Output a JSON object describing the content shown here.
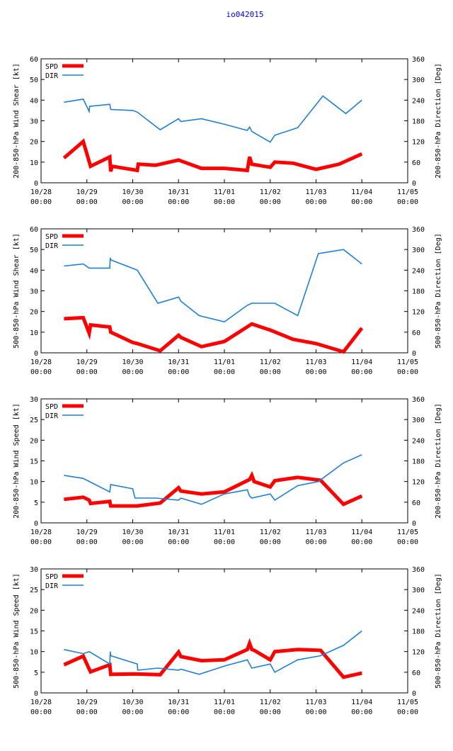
{
  "page_title": "io042015",
  "colors": {
    "spd": "#ff0000",
    "dir": "#1e7fd8",
    "title": "#0000ff",
    "axis": "#000000"
  },
  "x_axis": {
    "ticks": [
      {
        "date": "10/28",
        "time": "00:00"
      },
      {
        "date": "10/29",
        "time": "00:00"
      },
      {
        "date": "10/30",
        "time": "00:00"
      },
      {
        "date": "10/31",
        "time": "00:00"
      },
      {
        "date": "11/01",
        "time": "00:00"
      },
      {
        "date": "11/02",
        "time": "00:00"
      },
      {
        "date": "11/03",
        "time": "00:00"
      },
      {
        "date": "11/04",
        "time": "00:00"
      },
      {
        "date": "11/05",
        "time": "00:00"
      }
    ],
    "range_days": [
      0,
      8
    ]
  },
  "chart_data": [
    {
      "type": "line",
      "ylabel_left": "200-850-hPa Wind Shear [kt]",
      "ylabel_right": "200-850-hPa Direction [Deg]",
      "ylim_left": [
        0,
        60
      ],
      "yticks_left": [
        "0",
        "10",
        "20",
        "30",
        "40",
        "50",
        "60"
      ],
      "ylim_right": [
        0,
        360
      ],
      "yticks_right": [
        "0",
        "60",
        "120",
        "180",
        "240",
        "300",
        "360"
      ],
      "legend": [
        "SPD",
        "DIR"
      ],
      "series": [
        {
          "name": "SPD",
          "axis": "left",
          "x": [
            0.5,
            0.92,
            1.08,
            1.5,
            1.52,
            1.55,
            2.1,
            2.12,
            2.15,
            2.5,
            3.0,
            3.5,
            4.0,
            4.5,
            4.55,
            4.6,
            5.0,
            5.1,
            5.5,
            6.0,
            6.5,
            7.0
          ],
          "values": [
            12,
            20,
            8,
            12.5,
            5.5,
            8,
            6,
            9,
            9,
            8.5,
            11,
            7,
            7,
            6,
            12.5,
            9,
            7.5,
            10,
            9.5,
            6.5,
            9,
            14
          ]
        },
        {
          "name": "DIR",
          "axis": "left_scale_right",
          "x": [
            0.5,
            0.92,
            1.05,
            1.06,
            1.5,
            1.52,
            2.0,
            2.1,
            2.6,
            3.0,
            3.05,
            3.5,
            4.0,
            4.5,
            4.55,
            4.6,
            5.0,
            5.1,
            5.6,
            6.15,
            6.65,
            7.0
          ],
          "values": [
            234,
            243,
            207,
            222,
            228,
            213,
            210,
            205,
            154,
            186,
            178,
            186,
            170,
            152,
            162,
            149,
            118,
            138,
            160,
            252,
            201,
            240
          ]
        }
      ]
    },
    {
      "type": "line",
      "ylabel_left": "500-850-hPa Wind Shear [kt]",
      "ylabel_right": "500-850-hPa Direction [Deg]",
      "ylim_left": [
        0,
        60
      ],
      "yticks_left": [
        "0",
        "10",
        "20",
        "30",
        "40",
        "50",
        "60"
      ],
      "ylim_right": [
        0,
        360
      ],
      "yticks_right": [
        "0",
        "60",
        "120",
        "180",
        "240",
        "300",
        "360"
      ],
      "legend": [
        "SPD",
        "DIR"
      ],
      "series": [
        {
          "name": "SPD",
          "axis": "left",
          "x": [
            0.5,
            0.92,
            1.05,
            1.08,
            1.5,
            1.52,
            2.0,
            2.1,
            2.6,
            3.0,
            3.05,
            3.5,
            4.0,
            4.6,
            5.0,
            5.5,
            6.0,
            6.6,
            7.0
          ],
          "values": [
            16.5,
            17,
            9.5,
            13.5,
            12.5,
            10,
            5,
            4.5,
            1,
            8.5,
            7.5,
            3,
            5.5,
            14,
            11,
            6.5,
            4.5,
            0.5,
            12
          ]
        },
        {
          "name": "DIR",
          "axis": "left_scale_right",
          "x": [
            0.5,
            0.92,
            1.05,
            1.5,
            1.51,
            1.52,
            2.1,
            2.55,
            3.0,
            3.05,
            3.45,
            4.0,
            4.5,
            4.6,
            5.1,
            5.6,
            6.05,
            6.6,
            7.0
          ],
          "values": [
            252,
            258,
            246,
            246,
            276,
            270,
            240,
            144,
            162,
            150,
            108,
            90,
            138,
            144,
            144,
            108,
            288,
            300,
            258
          ]
        }
      ]
    },
    {
      "type": "line",
      "ylabel_left": "200-850-hPa Wind Speed [kt]",
      "ylabel_right": "200-850-hPa Direction [Deg]",
      "ylim_left": [
        0,
        30
      ],
      "yticks_left": [
        "0",
        "5",
        "10",
        "15",
        "20",
        "25",
        "30"
      ],
      "ylim_right": [
        0,
        360
      ],
      "yticks_right": [
        "0",
        "60",
        "120",
        "180",
        "240",
        "300",
        "360"
      ],
      "legend": [
        "SPD",
        "DIR"
      ],
      "series": [
        {
          "name": "SPD",
          "axis": "left",
          "x": [
            0.5,
            0.92,
            1.05,
            1.08,
            1.5,
            1.52,
            2.1,
            2.6,
            3.0,
            3.05,
            3.5,
            4.0,
            4.55,
            4.6,
            4.65,
            5.0,
            5.1,
            5.6,
            6.1,
            6.6,
            7.0
          ],
          "values": [
            5.7,
            6.2,
            5.5,
            4.7,
            5.2,
            4.1,
            4.1,
            4.8,
            8.5,
            7.7,
            7,
            7.5,
            10.5,
            11.5,
            10,
            8.7,
            10.2,
            11,
            10.3,
            4.5,
            6.5
          ]
        },
        {
          "name": "DIR",
          "axis": "left_scale_right",
          "x": [
            0.5,
            0.92,
            1.5,
            1.52,
            2.0,
            2.05,
            2.5,
            3.0,
            3.05,
            3.5,
            4.0,
            4.5,
            4.55,
            4.6,
            5.0,
            5.1,
            5.6,
            6.05,
            6.6,
            7.0
          ],
          "values": [
            138,
            129,
            90,
            111,
            99,
            72,
            72,
            66,
            72,
            54,
            84,
            96,
            78,
            72,
            84,
            66,
            108,
            120,
            174,
            198
          ]
        }
      ]
    },
    {
      "type": "line",
      "ylabel_left": "500-850-hPa Wind Speed [kt]",
      "ylabel_right": "500-850-hPa Direction [Deg]",
      "ylim_left": [
        0,
        30
      ],
      "yticks_left": [
        "0",
        "5",
        "10",
        "15",
        "20",
        "25",
        "30"
      ],
      "ylim_right": [
        0,
        360
      ],
      "yticks_right": [
        "0",
        "60",
        "120",
        "180",
        "240",
        "300",
        "360"
      ],
      "legend": [
        "SPD",
        "DIR"
      ],
      "series": [
        {
          "name": "SPD",
          "axis": "left",
          "x": [
            0.5,
            0.92,
            1.08,
            1.5,
            1.52,
            2.05,
            2.6,
            3.0,
            3.05,
            3.5,
            4.0,
            4.5,
            4.55,
            4.6,
            4.65,
            5.0,
            5.1,
            5.6,
            6.1,
            6.6,
            7.0
          ],
          "values": [
            6.8,
            8.9,
            5.1,
            6.8,
            4.5,
            4.6,
            4.4,
            9.9,
            8.8,
            7.8,
            8,
            10.5,
            12,
            10.5,
            10.3,
            8,
            10,
            10.5,
            10.3,
            3.8,
            4.8
          ]
        },
        {
          "name": "DIR",
          "axis": "left_scale_right",
          "x": [
            0.5,
            0.92,
            1.05,
            1.5,
            1.51,
            1.52,
            2.1,
            2.11,
            2.55,
            3.0,
            3.05,
            3.45,
            4.0,
            4.5,
            4.55,
            4.6,
            5.0,
            5.1,
            5.6,
            6.1,
            6.6,
            7.0
          ],
          "values": [
            126,
            114,
            120,
            84,
            120,
            108,
            84,
            66,
            72,
            66,
            69,
            54,
            78,
            96,
            84,
            72,
            84,
            60,
            96,
            108,
            138,
            180
          ]
        }
      ]
    }
  ]
}
